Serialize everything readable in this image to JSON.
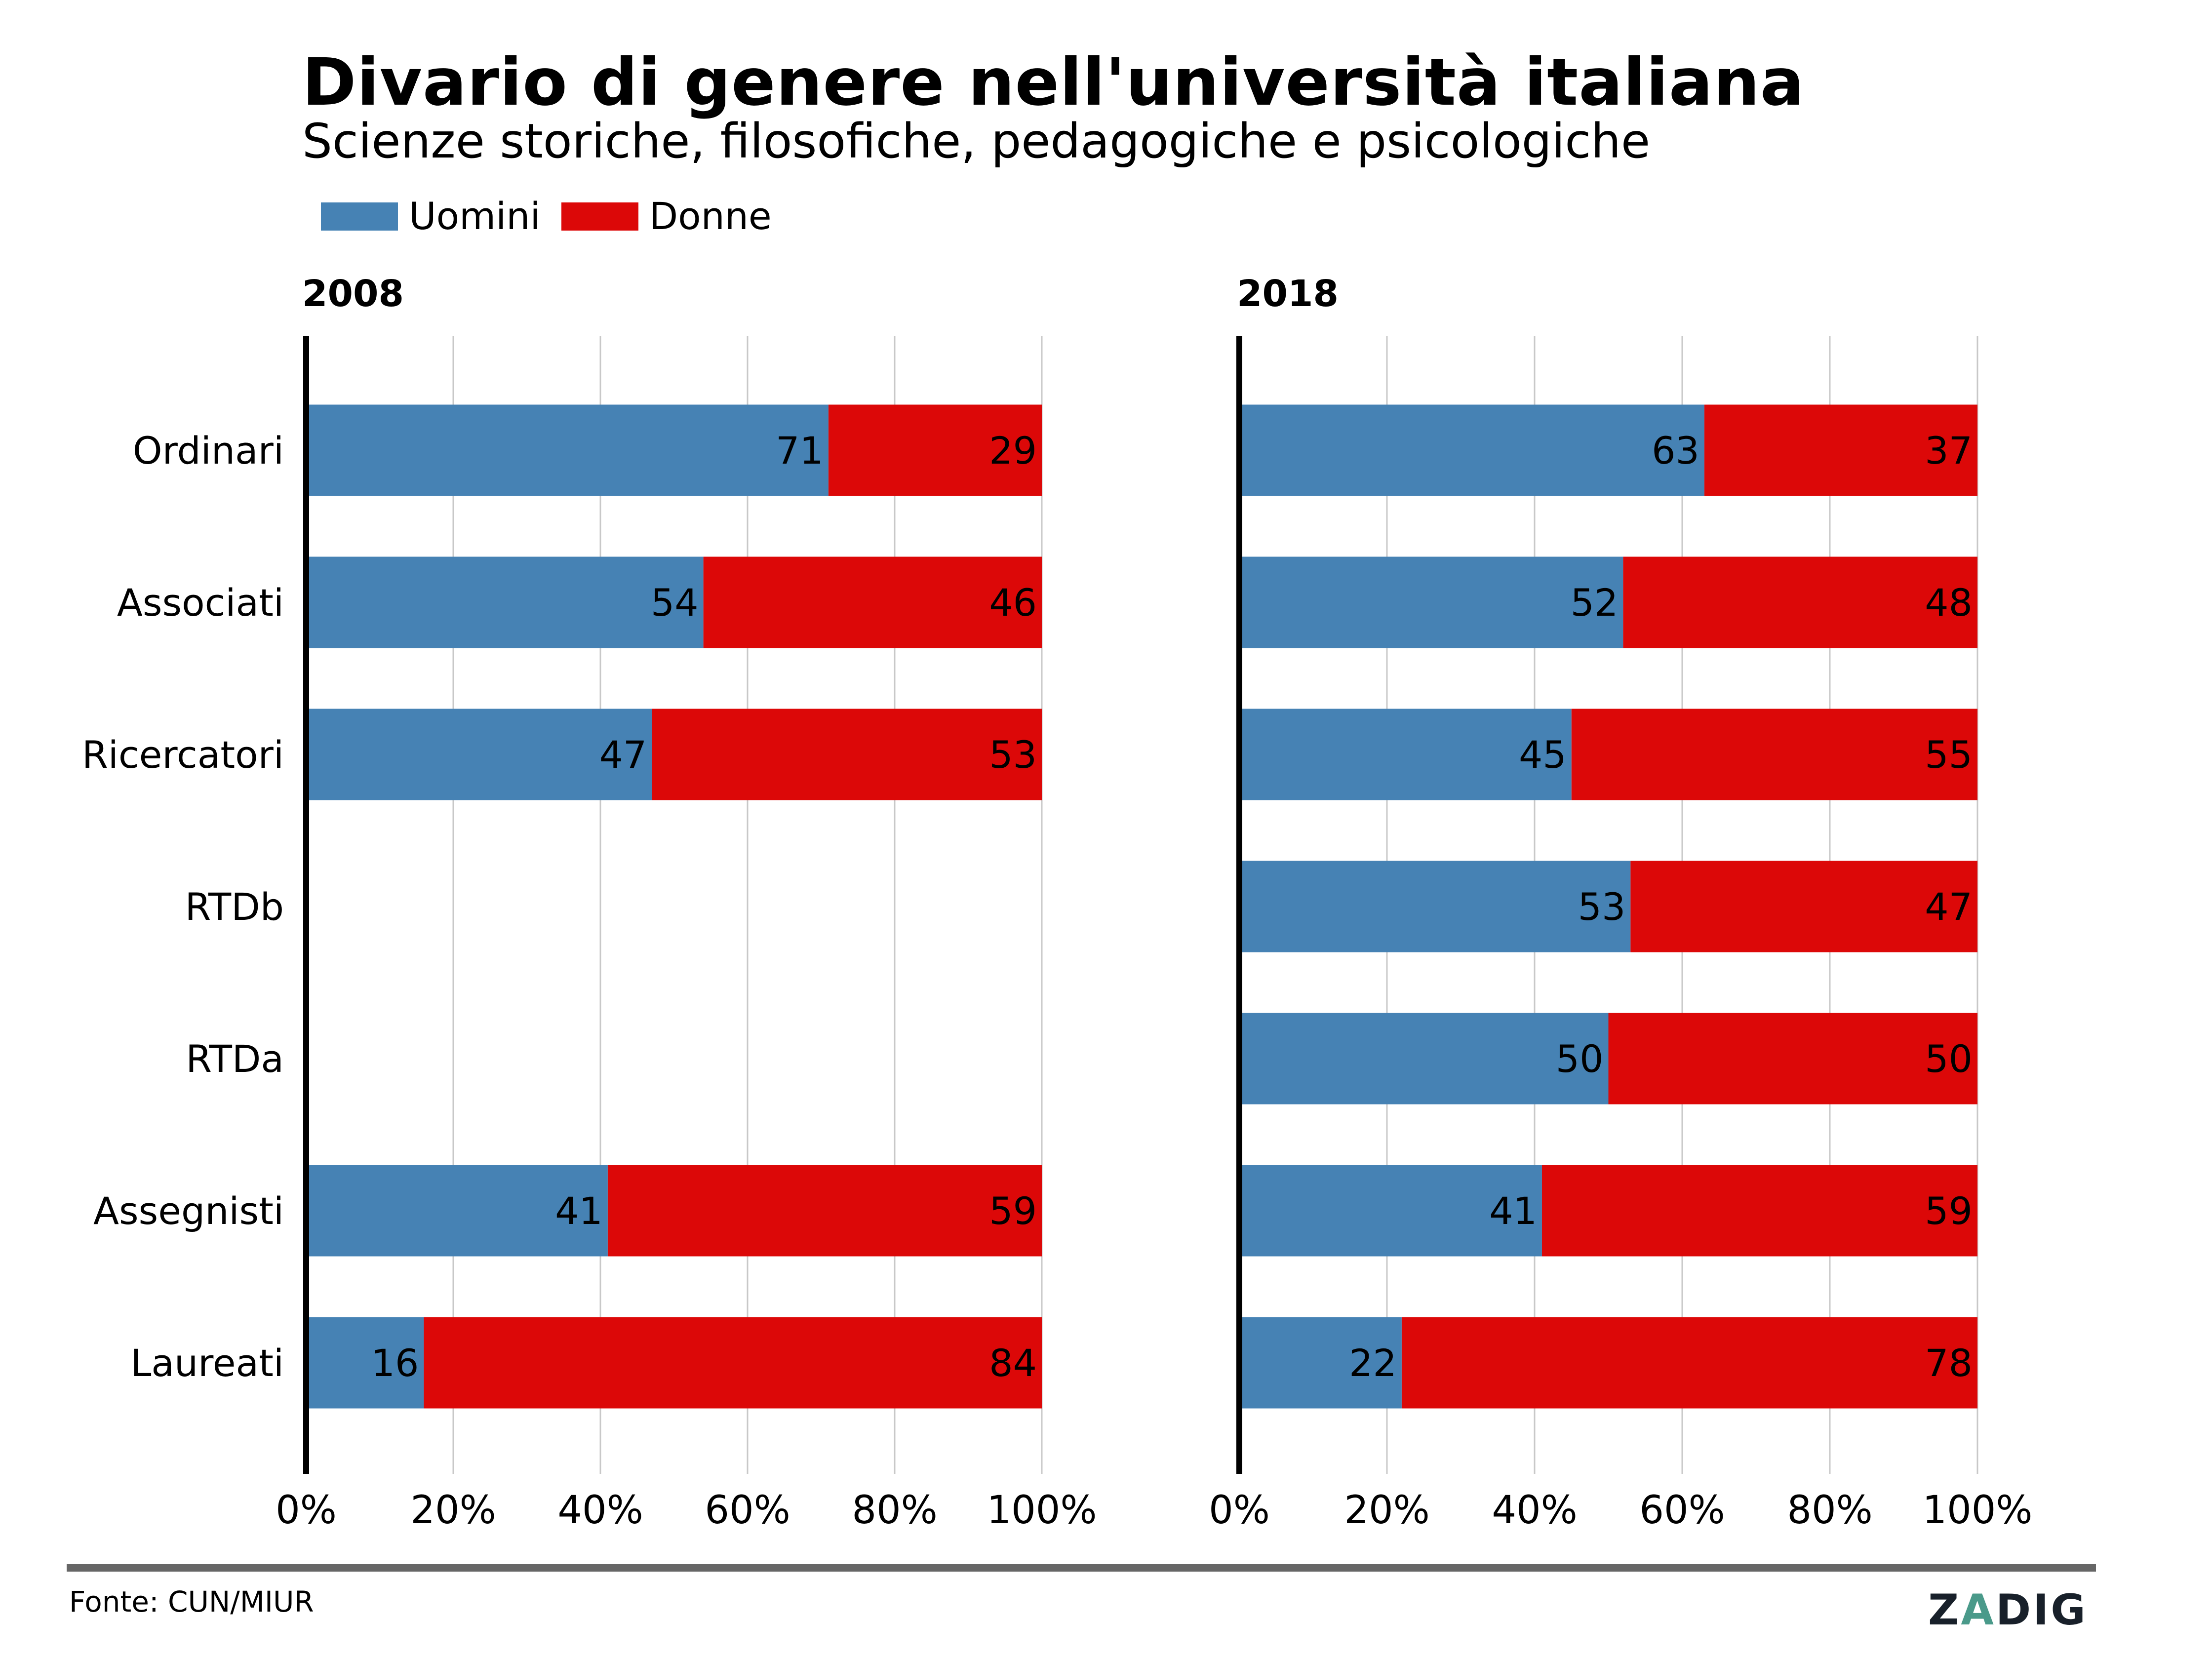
{
  "header": {
    "title": "Divario di genere nell'università italiana",
    "subtitle": "Scienze storiche, filosofiche, pedagogiche e psicologiche"
  },
  "legend": [
    {
      "label": "Uomini",
      "color": "#4682b4"
    },
    {
      "label": "Donne",
      "color": "#dc0808"
    }
  ],
  "footer": {
    "source": "Fonte: CUN/MIUR",
    "logo_parts": [
      "Z",
      "A",
      "DIG"
    ]
  },
  "chart_data": [
    {
      "type": "bar",
      "orientation": "horizontal",
      "stacked": true,
      "title": "2008",
      "categories": [
        "Ordinari",
        "Associati",
        "Ricercatori",
        "RTDb",
        "RTDa",
        "Assegnisti",
        "Laureati"
      ],
      "series": [
        {
          "name": "Uomini",
          "color": "#4682b4",
          "values": [
            71,
            54,
            47,
            null,
            null,
            41,
            16
          ]
        },
        {
          "name": "Donne",
          "color": "#dc0808",
          "values": [
            29,
            46,
            53,
            null,
            null,
            59,
            84
          ]
        }
      ],
      "xlim": [
        0,
        100
      ],
      "xticks": [
        "0%",
        "20%",
        "40%",
        "60%",
        "80%",
        "100%"
      ],
      "grid": true,
      "xlabel": "",
      "ylabel": ""
    },
    {
      "type": "bar",
      "orientation": "horizontal",
      "stacked": true,
      "title": "2018",
      "categories": [
        "Ordinari",
        "Associati",
        "Ricercatori",
        "RTDb",
        "RTDa",
        "Assegnisti",
        "Laureati"
      ],
      "series": [
        {
          "name": "Uomini",
          "color": "#4682b4",
          "values": [
            63,
            52,
            45,
            53,
            50,
            41,
            22
          ]
        },
        {
          "name": "Donne",
          "color": "#dc0808",
          "values": [
            37,
            48,
            55,
            47,
            50,
            59,
            78
          ]
        }
      ],
      "xlim": [
        0,
        100
      ],
      "xticks": [
        "0%",
        "20%",
        "40%",
        "60%",
        "80%",
        "100%"
      ],
      "grid": true,
      "xlabel": "",
      "ylabel": ""
    }
  ]
}
